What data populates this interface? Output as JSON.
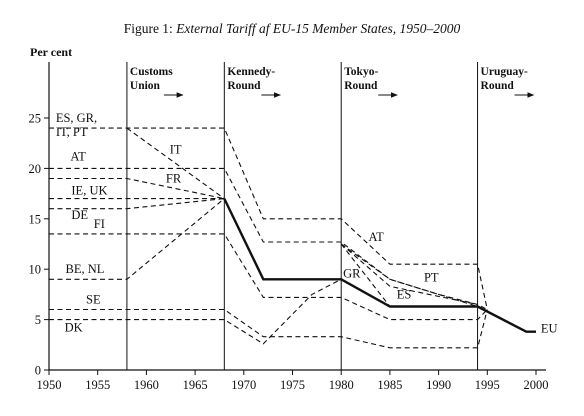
{
  "figure": {
    "label": "Figure 1:",
    "title": "External Tariff af EU-15 Member States, 1950–2000"
  },
  "chart_data": {
    "type": "line",
    "title": "External Tariff af EU-15 Member States, 1950–2000",
    "ylabel": "Per cent",
    "xlabel": "",
    "xlim": [
      1950,
      2000
    ],
    "ylim": [
      0,
      25
    ],
    "x_ticks": [
      1950,
      1955,
      1960,
      1965,
      1970,
      1975,
      1980,
      1985,
      1990,
      1995,
      2000
    ],
    "y_ticks": [
      0,
      5,
      10,
      15,
      20,
      25
    ],
    "grid": false,
    "rounds": [
      {
        "year": 1958,
        "line1": "Customs",
        "line2": "Union"
      },
      {
        "year": 1968,
        "line1": "Kennedy-",
        "line2": "Round"
      },
      {
        "year": 1980,
        "line1": "Tokyo-",
        "line2": "Round"
      },
      {
        "year": 1994,
        "line1": "Uruguay-",
        "line2": "Round"
      }
    ],
    "series": [
      {
        "name": "EU",
        "style": "solid",
        "points": [
          [
            1968,
            17
          ],
          [
            1972,
            9
          ],
          [
            1980,
            9
          ],
          [
            1985,
            6.3
          ],
          [
            1994,
            6.3
          ],
          [
            1999,
            3.8
          ],
          [
            2000,
            3.8
          ]
        ]
      },
      {
        "name": "ES, GR, IT, PT",
        "style": "dashed",
        "points": [
          [
            1950,
            24
          ],
          [
            1968,
            24
          ],
          [
            1972,
            15
          ],
          [
            1980,
            15
          ],
          [
            1985,
            10.5
          ],
          [
            1994,
            10.5
          ],
          [
            1995,
            6
          ]
        ]
      },
      {
        "name": "IT",
        "style": "dashed",
        "points": [
          [
            1958,
            24
          ],
          [
            1968,
            17
          ]
        ]
      },
      {
        "name": "AT",
        "style": "dashed",
        "points": [
          [
            1950,
            20
          ],
          [
            1968,
            20
          ],
          [
            1972,
            12.7
          ],
          [
            1980,
            12.7
          ],
          [
            1985,
            9
          ],
          [
            1990,
            7.5
          ],
          [
            1994,
            6.5
          ],
          [
            1995,
            6
          ]
        ]
      },
      {
        "name": "FR",
        "style": "dashed",
        "points": [
          [
            1950,
            19
          ],
          [
            1958,
            19
          ],
          [
            1968,
            17
          ]
        ]
      },
      {
        "name": "IE, UK",
        "style": "dashed",
        "points": [
          [
            1950,
            17
          ],
          [
            1968,
            17
          ]
        ]
      },
      {
        "name": "DE",
        "style": "dashed",
        "points": [
          [
            1950,
            16
          ],
          [
            1958,
            16
          ],
          [
            1968,
            17
          ]
        ]
      },
      {
        "name": "FI",
        "style": "dashed",
        "points": [
          [
            1950,
            13.5
          ],
          [
            1968,
            13.5
          ],
          [
            1972,
            7.2
          ],
          [
            1980,
            7.2
          ],
          [
            1985,
            5
          ],
          [
            1994,
            5
          ],
          [
            1995,
            6
          ]
        ]
      },
      {
        "name": "BE, NL",
        "style": "dashed",
        "points": [
          [
            1950,
            9
          ],
          [
            1958,
            9
          ],
          [
            1968,
            17
          ]
        ]
      },
      {
        "name": "SE",
        "style": "dashed",
        "points": [
          [
            1950,
            6
          ],
          [
            1968,
            6
          ],
          [
            1972,
            3.3
          ],
          [
            1980,
            3.3
          ],
          [
            1985,
            2.2
          ],
          [
            1994,
            2.2
          ],
          [
            1995,
            6
          ]
        ]
      },
      {
        "name": "DK",
        "style": "dashed",
        "points": [
          [
            1950,
            5
          ],
          [
            1968,
            5
          ],
          [
            1972,
            2.6
          ],
          [
            1977,
            7.5
          ],
          [
            1980,
            9
          ]
        ]
      },
      {
        "name": "GR",
        "style": "dashed",
        "points": [
          [
            1980,
            12.5
          ],
          [
            1985,
            6.3
          ]
        ]
      },
      {
        "name": "ES",
        "style": "dashed",
        "points": [
          [
            1980,
            12.5
          ],
          [
            1985,
            8.3
          ],
          [
            1994,
            6.5
          ]
        ]
      },
      {
        "name": "PT",
        "style": "dashed",
        "points": [
          [
            1980,
            12.5
          ],
          [
            1985,
            9
          ],
          [
            1994,
            6.3
          ]
        ]
      }
    ],
    "annotations": [
      {
        "text": "ES, GR,",
        "x": 1950.7,
        "y": 24.6
      },
      {
        "text": "IT, PT",
        "x": 1950.7,
        "y": 23.2
      },
      {
        "text": "AT",
        "x": 1952.2,
        "y": 20.8
      },
      {
        "text": "IT",
        "x": 1962.4,
        "y": 21.5
      },
      {
        "text": "FR",
        "x": 1962.0,
        "y": 18.6
      },
      {
        "text": "IE, UK",
        "x": 1952.3,
        "y": 17.4
      },
      {
        "text": "DE",
        "x": 1952.3,
        "y": 15.0
      },
      {
        "text": "FI",
        "x": 1954.6,
        "y": 14.1
      },
      {
        "text": "BE, NL",
        "x": 1951.7,
        "y": 9.6
      },
      {
        "text": "SE",
        "x": 1953.8,
        "y": 6.6
      },
      {
        "text": "DK",
        "x": 1951.6,
        "y": 3.8
      },
      {
        "text": "AT",
        "x": 1982.8,
        "y": 12.8
      },
      {
        "text": "GR",
        "x": 1980.2,
        "y": 9.2
      },
      {
        "text": "ES",
        "x": 1985.7,
        "y": 7.1
      },
      {
        "text": "PT",
        "x": 1988.5,
        "y": 8.8
      },
      {
        "text": "EU",
        "x": 2000.5,
        "y": 3.7
      }
    ]
  }
}
